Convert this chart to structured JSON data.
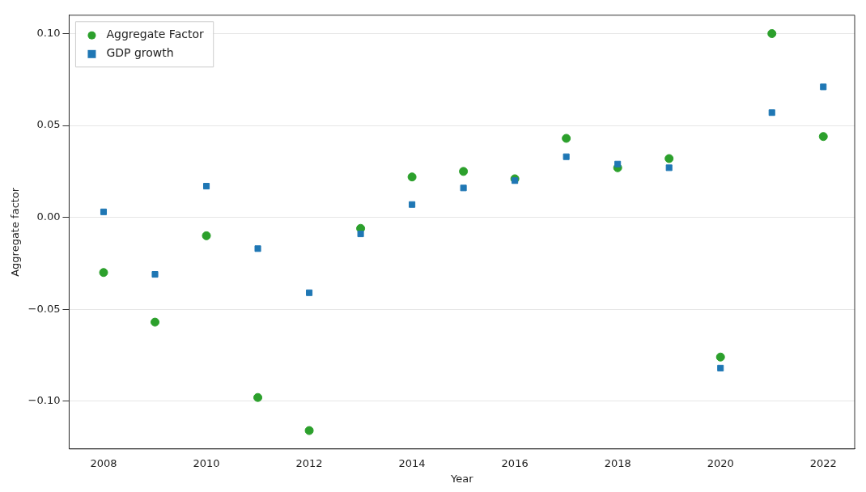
{
  "chart_data": {
    "type": "scatter",
    "xlabel": "Year",
    "ylabel": "Aggregate factor",
    "x": [
      2008,
      2009,
      2010,
      2011,
      2012,
      2013,
      2014,
      2015,
      2016,
      2017,
      2018,
      2019,
      2020,
      2021,
      2022
    ],
    "series": [
      {
        "name": "Aggregate Factor",
        "color": "#2ca02c",
        "marker": "circle",
        "values": [
          -0.03,
          -0.057,
          -0.01,
          -0.098,
          -0.116,
          -0.006,
          0.022,
          0.025,
          0.021,
          0.043,
          0.027,
          0.032,
          -0.076,
          0.1,
          0.044
        ]
      },
      {
        "name": "GDP growth",
        "color": "#1f77b4",
        "marker": "square",
        "values": [
          0.003,
          -0.031,
          0.017,
          -0.017,
          -0.041,
          -0.009,
          0.007,
          0.016,
          0.02,
          0.033,
          0.029,
          0.027,
          -0.082,
          0.057,
          0.071
        ]
      }
    ],
    "xlim": [
      2007.33,
      2022.61
    ],
    "xticks": [
      2008,
      2010,
      2012,
      2014,
      2016,
      2018,
      2020,
      2022
    ],
    "ylim": [
      -0.126,
      0.11
    ],
    "yticks": [
      {
        "value": -0.1,
        "label": "−0.10"
      },
      {
        "value": -0.05,
        "label": "−0.05"
      },
      {
        "value": 0,
        "label": "0.00"
      },
      {
        "value": 0.05,
        "label": "0.05"
      },
      {
        "value": 0.1,
        "label": "0.10"
      }
    ],
    "grid": "y",
    "legend": "top left"
  }
}
